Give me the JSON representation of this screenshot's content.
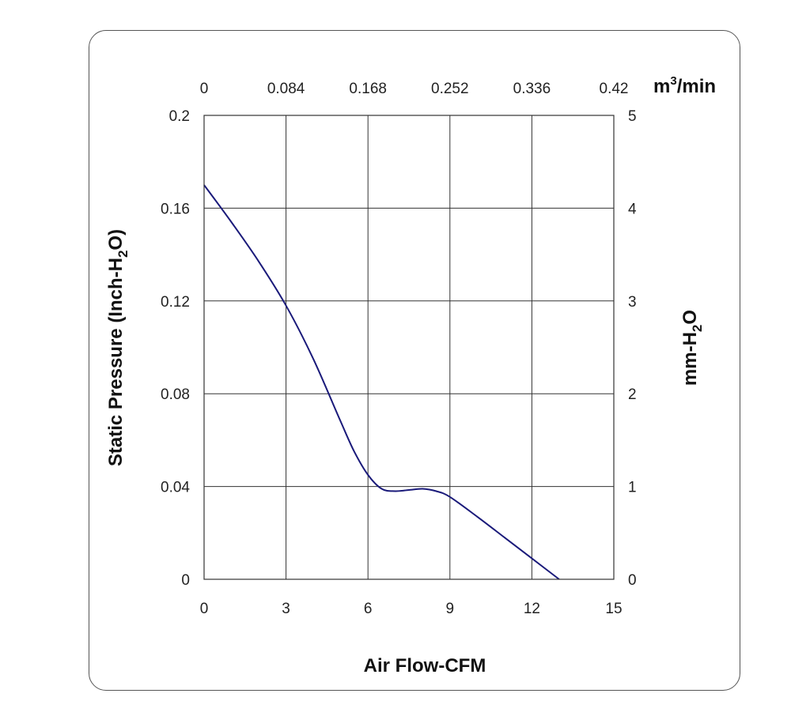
{
  "chart_data": {
    "type": "line",
    "x_bottom": {
      "label": "Air Flow-CFM",
      "range": [
        0,
        15
      ],
      "ticks": [
        "0",
        "3",
        "6",
        "9",
        "12",
        "15"
      ]
    },
    "x_top": {
      "unit_base": "m",
      "unit_sup": "3",
      "unit_suffix": "/min",
      "range": [
        0,
        0.42
      ],
      "ticks": [
        "0",
        "0.084",
        "0.168",
        "0.252",
        "0.336",
        "0.42"
      ]
    },
    "y_left": {
      "label_main": "Static Pressure (Inch-H",
      "label_sub": "2",
      "label_end": "O)",
      "range": [
        0,
        0.2
      ],
      "ticks": [
        "0",
        "0.04",
        "0.08",
        "0.12",
        "0.16",
        "0.2"
      ]
    },
    "y_right": {
      "label_main": "mm-H",
      "label_sub": "2",
      "label_end": "O",
      "range": [
        0,
        5
      ],
      "ticks": [
        "0",
        "1",
        "2",
        "3",
        "4",
        "5"
      ]
    },
    "grid": true,
    "series": [
      {
        "color": "#1a1a7a",
        "x": [
          0,
          1,
          2,
          3,
          4,
          5,
          5.5,
          6,
          6.5,
          7,
          7.5,
          8,
          8.5,
          9,
          10,
          11,
          12,
          13
        ],
        "y": [
          0.17,
          0.154,
          0.137,
          0.118,
          0.095,
          0.068,
          0.055,
          0.045,
          0.039,
          0.038,
          0.0385,
          0.039,
          0.038,
          0.0355,
          0.027,
          0.018,
          0.009,
          0.0
        ]
      }
    ]
  }
}
